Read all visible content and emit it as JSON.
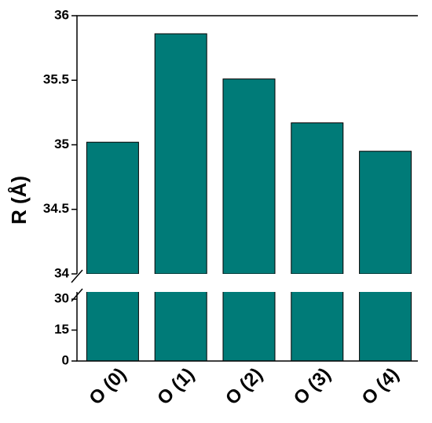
{
  "chart_data": {
    "type": "bar",
    "ylabel": "R (Å)",
    "categories": [
      "O (0)",
      "O (1)",
      "O (2)",
      "O (3)",
      "O (4)"
    ],
    "values": [
      35.02,
      35.86,
      35.51,
      35.17,
      34.95
    ],
    "color": "#007b78",
    "ylim": [
      34,
      36
    ],
    "yticks": [
      34,
      34.5,
      35,
      35.5,
      36
    ],
    "ylim_lower": [
      0,
      33.5
    ],
    "yticks_lower": [
      0,
      15,
      30
    ]
  }
}
